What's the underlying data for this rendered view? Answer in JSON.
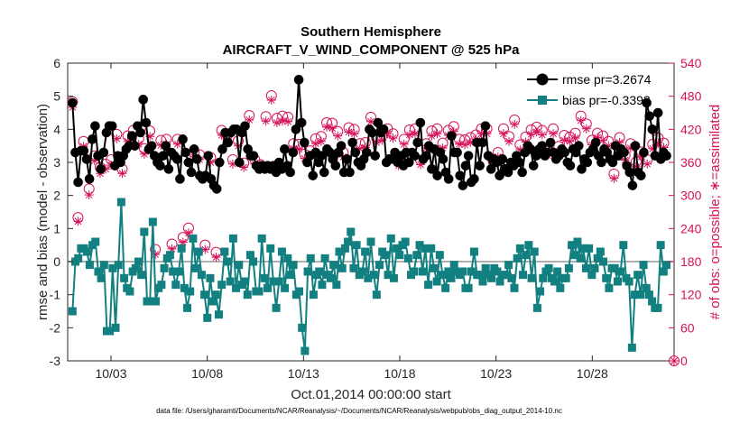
{
  "chart_data": {
    "type": "line",
    "title": "Southern Hemisphere",
    "subtitle": "AIRCRAFT_V_WIND_COMPONENT @ 525 hPa",
    "xlabel": "Oct.01,2014 00:00:00 start",
    "ylabel": "rmse and bias (model - observation)",
    "ylabel_right": "# of obs: o=possible; ∗=assimilated",
    "footnote": "data file: /Users/gharamti/Documents/NCAR/Reanalysis/~/Documents/NCAR/Reanalysis/webpub/obs_diag_output_2014-10.nc",
    "xlim": [
      0.75,
      32.25
    ],
    "ylim": [
      -3,
      6
    ],
    "ylim_right": [
      0,
      540
    ],
    "x_ticks": [
      3,
      8,
      13,
      18,
      23,
      28
    ],
    "x_tick_labels": [
      "10/03",
      "10/08",
      "10/13",
      "10/18",
      "10/23",
      "10/28"
    ],
    "y_ticks": [
      -3,
      -2,
      -1,
      0,
      1,
      2,
      3,
      4,
      5,
      6
    ],
    "y_ticks_right": [
      0,
      60,
      120,
      180,
      240,
      300,
      360,
      420,
      480,
      540
    ],
    "legend": {
      "location": "top-right",
      "entries": [
        "rmse pr=3.2674",
        "bias pr=-0.3392"
      ]
    },
    "series": [
      {
        "name": "rmse pr=3.2674",
        "color": "#000000",
        "marker": "circle",
        "values": [
          4.8,
          3.3,
          2.4,
          3.35,
          3.35,
          3.1,
          2.5,
          3.7,
          4.1,
          3.2,
          2.8,
          3.3,
          3.9,
          4.1,
          4.1,
          2.9,
          3.2,
          3.0,
          3.2,
          3.4,
          3.5,
          3.8,
          3.5,
          4.1,
          3.9,
          4.9,
          4.2,
          3.4,
          3.5,
          3.2,
          3.0,
          2.9,
          3.2,
          3.5,
          2.8,
          3.3,
          3.2,
          3.1,
          2.5,
          3.7,
          3.3,
          3.0,
          2.7,
          3.4,
          3.1,
          2.6,
          2.5,
          2.6,
          3.2,
          2.5,
          2.3,
          2.2,
          3.0,
          3.4,
          3.9,
          3.6,
          3.9,
          4.0,
          4.0,
          3.0,
          3.9,
          4.1,
          3.4,
          3.2,
          3.2,
          2.9,
          2.8,
          2.9,
          2.8,
          2.9,
          2.8,
          2.9,
          2.7,
          3.0,
          2.8,
          3.4,
          2.9,
          2.7,
          3.3,
          4.0,
          5.5,
          4.2,
          3.6,
          3.0,
          3.2,
          2.6,
          3.3,
          3.0,
          3.2,
          2.7,
          3.4,
          3.3,
          3.1,
          2.9,
          3.3,
          3.5,
          2.7,
          3.1,
          2.7,
          3.6,
          3.3,
          3.0,
          2.9,
          3.1,
          3.3,
          4.0,
          3.9,
          3.2,
          4.2,
          3.9,
          4.0,
          3.0,
          3.1,
          3.1,
          3.3,
          3.0,
          3.2,
          2.9,
          3.3,
          3.0,
          3.3,
          3.2,
          3.6,
          4.2,
          3.1,
          3.2,
          3.5,
          2.8,
          3.4,
          2.6,
          3.3,
          3.1,
          2.7,
          2.5,
          3.8,
          3.3,
          3.3,
          2.6,
          2.3,
          2.9,
          3.2,
          2.4,
          2.5,
          3.6,
          2.9,
          3.6,
          4.1,
          3.2,
          2.8,
          3.1,
          3.0,
          2.6,
          3.1,
          2.8,
          2.7,
          3.0,
          2.9,
          3.2,
          3.0,
          2.7,
          3.3,
          3.5,
          3.4,
          2.9,
          3.2,
          3.4,
          3.5,
          3.2,
          3.3,
          3.6,
          3.3,
          3.1,
          3.2,
          3.4,
          3.3,
          3.0,
          2.9,
          3.4,
          3.3,
          3.5,
          2.8,
          3.1,
          3.0,
          3.3,
          3.4,
          3.6,
          3.2,
          3.0,
          3.4,
          3.3,
          3.1,
          3.0,
          3.5,
          3.2,
          3.4,
          3.3,
          2.9,
          2.7,
          2.3,
          3.5,
          2.7,
          2.6,
          3.3,
          4.8,
          4.4,
          4.0,
          3.2,
          4.5,
          3.1,
          3.3,
          3.2
        ]
      },
      {
        "name": "bias pr=-0.3392",
        "color": "#128080",
        "marker": "square",
        "values": [
          -1.5,
          0.0,
          0.1,
          0.4,
          0.4,
          0.3,
          -0.1,
          0.5,
          0.6,
          -0.3,
          -0.5,
          -0.1,
          -2.1,
          -2.1,
          -0.2,
          -2.0,
          -0.1,
          1.8,
          -0.5,
          -0.8,
          -0.9,
          -0.3,
          -0.2,
          0.0,
          -0.4,
          0.9,
          -1.2,
          -1.2,
          1.2,
          -1.2,
          -0.8,
          -0.7,
          -0.2,
          0.1,
          0.2,
          -0.3,
          -0.7,
          -0.3,
          0.4,
          -0.8,
          -1.4,
          -0.9,
          0.7,
          -0.2,
          0.3,
          -0.4,
          -1.0,
          -1.7,
          -0.5,
          -1.2,
          -1.0,
          -1.6,
          -0.7,
          0.3,
          0.0,
          -0.6,
          0.7,
          -0.8,
          -0.1,
          -0.7,
          -0.6,
          -1.0,
          0.2,
          0.0,
          -0.9,
          -0.9,
          0.7,
          -0.5,
          -0.8,
          0.4,
          -0.6,
          -1.4,
          -0.6,
          0.3,
          -0.8,
          0.1,
          -0.4,
          -0.1,
          -1.0,
          -0.9,
          -2.0,
          -2.7,
          -0.3,
          0.1,
          -1.0,
          -0.4,
          -0.3,
          -0.7,
          0.1,
          -0.4,
          -0.5,
          -0.1,
          -0.7,
          0.3,
          -0.2,
          0.4,
          0.6,
          0.9,
          -0.2,
          0.5,
          -0.4,
          -0.3,
          0.3,
          -0.5,
          0.6,
          -0.4,
          -1.0,
          -0.1,
          0.3,
          0.2,
          -0.4,
          0.7,
          -0.5,
          0.4,
          0.2,
          0.5,
          0.6,
          0.1,
          -0.4,
          -0.3,
          0.2,
          0.5,
          -0.3,
          0.4,
          -0.7,
          0.4,
          -0.2,
          -0.6,
          0.2,
          -0.4,
          -0.8,
          -0.3,
          -0.5,
          -0.1,
          -0.3,
          -0.4,
          -0.3,
          -0.8,
          -0.8,
          -0.3,
          0.3,
          -0.4,
          -0.4,
          -0.6,
          -0.2,
          -0.4,
          -0.5,
          -0.2,
          -0.3,
          -0.6,
          -0.4,
          -0.4,
          -0.1,
          -0.5,
          -0.8,
          0.1,
          0.4,
          -0.4,
          0.2,
          0.5,
          -0.5,
          0.3,
          -1.4,
          -0.9,
          -0.5,
          -0.3,
          -0.2,
          -0.5,
          -0.6,
          -0.3,
          -0.8,
          -0.5,
          -0.5,
          -0.2,
          0.5,
          0.2,
          0.6,
          0.1,
          0.4,
          -0.2,
          0.4,
          -0.4,
          -0.2,
          0.1,
          0.3,
          0.0,
          -0.5,
          -0.8,
          -0.2,
          -0.2,
          -0.6,
          -0.3,
          0.5,
          -0.5,
          -0.6,
          -2.6,
          -1.0,
          -0.4,
          -1.0,
          -0.1,
          -0.8,
          -1.0,
          -1.2,
          -1.4,
          -1.4,
          0.5,
          -0.3,
          -0.1
        ]
      },
      {
        "name": "",
        "axis": "right",
        "color": "#d6105a",
        "marker": "circle-open",
        "values": [
          470,
          496,
          260,
          380,
          398,
          490,
          312,
          352,
          372,
          480,
          351,
          324,
          357,
          371,
          365,
          357,
          411,
          403,
          348,
          410,
          408,
          405,
          418,
          415,
          403,
          424,
          385,
          428,
          417,
          245,
          202,
          412,
          400,
          397,
          402,
          386,
          212,
          407,
          402,
          367,
          224,
          223,
          241,
          396,
          378,
          390,
          374,
          211,
          210,
          407,
          369,
          239,
          197,
          222,
          418,
          388,
          409,
          472,
          365,
          482,
          399,
          356,
          359,
          444,
          445,
          416,
          365,
          365,
          356,
          405,
          443,
          428,
          481,
          394,
          440,
          442,
          444,
          459,
          442,
          489,
          394,
          394,
          393,
          377,
          375,
          412,
          381,
          403,
          403,
          400,
          407,
          428,
          432,
          384,
          431,
          440,
          416,
          396,
          378,
          441,
          423,
          437,
          420,
          441,
          394,
          441,
          396,
          406,
          442,
          395,
          405,
          409,
          408,
          388,
          421,
          427,
          412,
          397,
          362,
          398,
          402,
          368,
          419,
          362,
          421,
          404,
          364,
          380,
          394,
          412,
          417,
          360,
          421,
          374,
          395,
          388,
          418,
          388,
          425,
          413,
          402,
          421,
          401,
          456,
          405,
          416,
          410,
          396,
          421,
          397,
          421,
          346,
          366,
          413,
          378,
          418,
          421,
          378,
          407,
          400,
          437,
          413,
          392,
          422,
          406,
          433,
          419,
          362,
          424,
          418,
          418,
          433,
          380,
          417,
          421,
          415,
          389,
          424,
          409,
          368,
          406,
          428,
          413,
          397,
          444,
          399,
          430,
          413,
          400,
          363,
          413,
          437,
          408,
          379,
          398,
          371,
          339,
          351,
          405,
          378,
          373,
          407,
          394,
          394,
          361,
          420,
          379,
          353,
          365,
          377,
          393,
          405,
          404,
          411,
          395,
          358
        ]
      },
      {
        "name": "",
        "axis": "right",
        "color": "#d6105a",
        "marker": "asterisk",
        "values": [
          460,
          490,
          253,
          360,
          389,
          485,
          301,
          342,
          363,
          476,
          340,
          314,
          348,
          360,
          355,
          350,
          403,
          393,
          340,
          400,
          398,
          396,
          409,
          405,
          393,
          415,
          375,
          420,
          407,
          235,
          193,
          403,
          391,
          389,
          393,
          378,
          203,
          398,
          393,
          359,
          215,
          215,
          232,
          386,
          370,
          381,
          365,
          203,
          202,
          398,
          360,
          230,
          188,
          213,
          409,
          380,
          400,
          464,
          357,
          474,
          390,
          348,
          351,
          435,
          437,
          408,
          357,
          356,
          347,
          396,
          435,
          419,
          473,
          385,
          432,
          434,
          435,
          452,
          434,
          482,
          385,
          385,
          384,
          369,
          367,
          403,
          373,
          394,
          394,
          391,
          398,
          420,
          424,
          376,
          422,
          431,
          408,
          387,
          370,
          432,
          415,
          428,
          412,
          432,
          385,
          433,
          387,
          397,
          434,
          386,
          396,
          400,
          400,
          380,
          412,
          418,
          404,
          389,
          354,
          389,
          393,
          360,
          410,
          354,
          412,
          396,
          356,
          371,
          386,
          403,
          408,
          352,
          412,
          366,
          386,
          380,
          409,
          380,
          416,
          405,
          393,
          412,
          392,
          449,
          396,
          407,
          402,
          388,
          412,
          388,
          412,
          338,
          358,
          405,
          370,
          409,
          412,
          370,
          398,
          392,
          429,
          404,
          383,
          413,
          397,
          424,
          411,
          354,
          415,
          410,
          410,
          424,
          372,
          408,
          412,
          406,
          380,
          416,
          400,
          360,
          398,
          420,
          404,
          389,
          436,
          390,
          421,
          404,
          392,
          355,
          405,
          429,
          400,
          371,
          390,
          362,
          331,
          342,
          396,
          370,
          364,
          399,
          386,
          385,
          352,
          412,
          370,
          345,
          357,
          369,
          385,
          396,
          395,
          402,
          387,
          350
        ]
      }
    ]
  }
}
